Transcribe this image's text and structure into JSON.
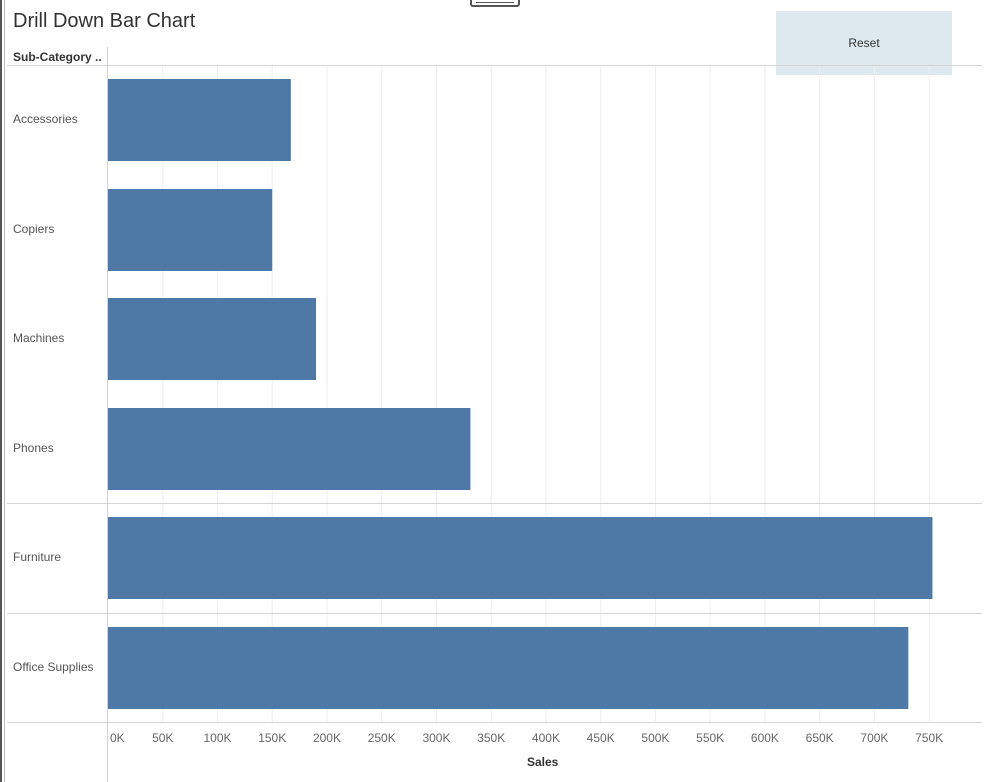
{
  "title": "Drill Down Bar Chart",
  "reset_button": {
    "label": "Reset"
  },
  "chart_data": {
    "type": "bar",
    "orientation": "horizontal",
    "row_header": "Sub-Category ..",
    "categories": [
      "Accessories",
      "Copiers",
      "Machines",
      "Phones",
      "Furniture",
      "Office Supplies"
    ],
    "values": [
      167000,
      150000,
      190000,
      331000,
      753000,
      731000
    ],
    "row_groups": [
      [
        0,
        1,
        2,
        3
      ],
      [
        4
      ],
      [
        5
      ]
    ],
    "xlabel": "Sales",
    "xlim": [
      0,
      780000
    ],
    "x_ticks": [
      0,
      50000,
      100000,
      150000,
      200000,
      250000,
      300000,
      350000,
      400000,
      450000,
      500000,
      550000,
      600000,
      650000,
      700000,
      750000
    ],
    "x_tick_labels": [
      "0K",
      "50K",
      "100K",
      "150K",
      "200K",
      "250K",
      "300K",
      "350K",
      "400K",
      "450K",
      "500K",
      "550K",
      "600K",
      "650K",
      "700K",
      "750K"
    ],
    "grid": "vertical",
    "bar_color": "#4e79a7"
  }
}
